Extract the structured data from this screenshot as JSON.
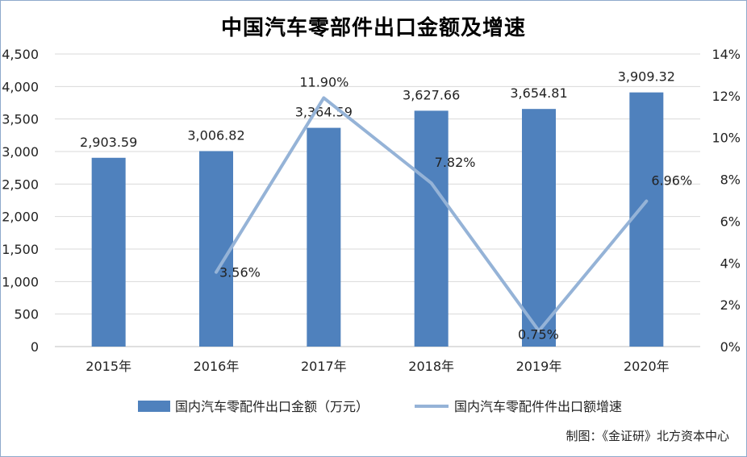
{
  "chart_data": {
    "type": "bar",
    "title": "中国汽车零部件出口金额及增速",
    "categories": [
      "2015年",
      "2016年",
      "2017年",
      "2018年",
      "2019年",
      "2020年"
    ],
    "series": [
      {
        "name": "国内汽车零配件出口金额（万元）",
        "type": "bar",
        "axis": "left",
        "values": [
          2903.59,
          3006.82,
          3364.59,
          3627.66,
          3654.81,
          3909.32
        ],
        "labels": [
          "2,903.59",
          "3,006.82",
          "3,364.59",
          "3,627.66",
          "3,654.81",
          "3,909.32"
        ],
        "color": "#4f81bd"
      },
      {
        "name": "国内汽车零配件件出口额增速",
        "type": "line",
        "axis": "right",
        "values": [
          null,
          3.56,
          11.9,
          7.82,
          0.75,
          6.96
        ],
        "labels": [
          "",
          "3.56%",
          "11.90%",
          "7.82%",
          "0.75%",
          "6.96%"
        ],
        "color": "#95b3d7"
      }
    ],
    "left_axis": {
      "ylim": [
        0,
        4500
      ],
      "ticks": [
        "0",
        "500",
        "1,000",
        "1,500",
        "2,000",
        "2,500",
        "3,000",
        "3,500",
        "4,000",
        "4,500"
      ]
    },
    "right_axis": {
      "ylim": [
        0,
        14
      ],
      "ticks": [
        "0%",
        "2%",
        "4%",
        "6%",
        "8%",
        "10%",
        "12%",
        "14%"
      ]
    },
    "grid": true,
    "legend": "bottom"
  },
  "source": "制图：《金证研》北方资本中心"
}
